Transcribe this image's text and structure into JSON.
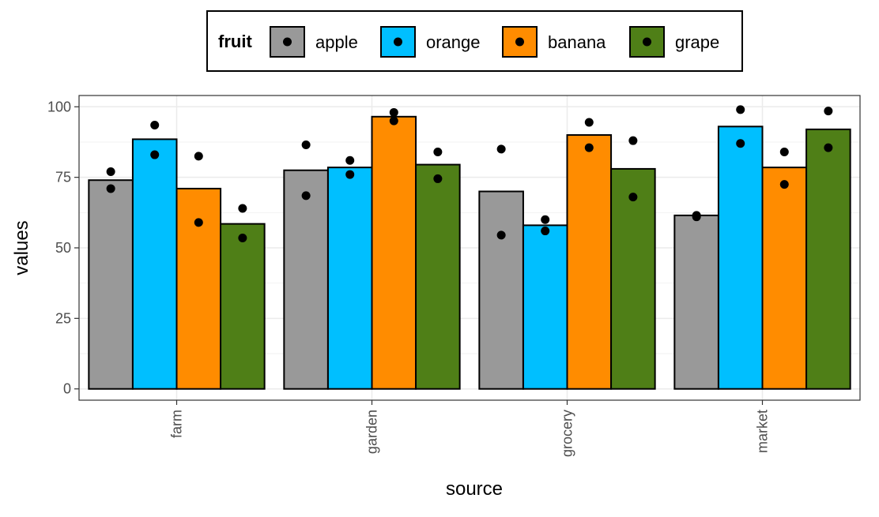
{
  "chart_data": {
    "type": "bar",
    "title": "",
    "xlabel": "source",
    "ylabel": "values",
    "ylim": [
      -4,
      104
    ],
    "yticks": [
      0,
      25,
      50,
      75,
      100
    ],
    "grid": true,
    "categories": [
      "farm",
      "garden",
      "grocery",
      "market"
    ],
    "legend": {
      "title": "fruit",
      "position": "top"
    },
    "series": [
      {
        "name": "apple",
        "color": "#999999",
        "values": [
          74,
          77.5,
          70,
          61.5
        ],
        "points": [
          [
            71,
            77
          ],
          [
            68.5,
            86.5
          ],
          [
            54.5,
            85
          ],
          [
            61,
            61.5
          ]
        ]
      },
      {
        "name": "orange",
        "color": "#00BFFF",
        "values": [
          88.5,
          78.5,
          58,
          93
        ],
        "points": [
          [
            83,
            93.5
          ],
          [
            76,
            81
          ],
          [
            56,
            60
          ],
          [
            87,
            99
          ]
        ]
      },
      {
        "name": "banana",
        "color": "#FF8C00",
        "values": [
          71,
          96.5,
          90,
          78.5
        ],
        "points": [
          [
            59,
            82.5
          ],
          [
            95,
            98
          ],
          [
            85.5,
            94.5
          ],
          [
            72.5,
            84
          ]
        ]
      },
      {
        "name": "grape",
        "color": "#4F7F17",
        "values": [
          58.5,
          79.5,
          78,
          92
        ],
        "points": [
          [
            53.5,
            64
          ],
          [
            74.5,
            84
          ],
          [
            68,
            88
          ],
          [
            85.5,
            98.5
          ]
        ]
      }
    ]
  }
}
